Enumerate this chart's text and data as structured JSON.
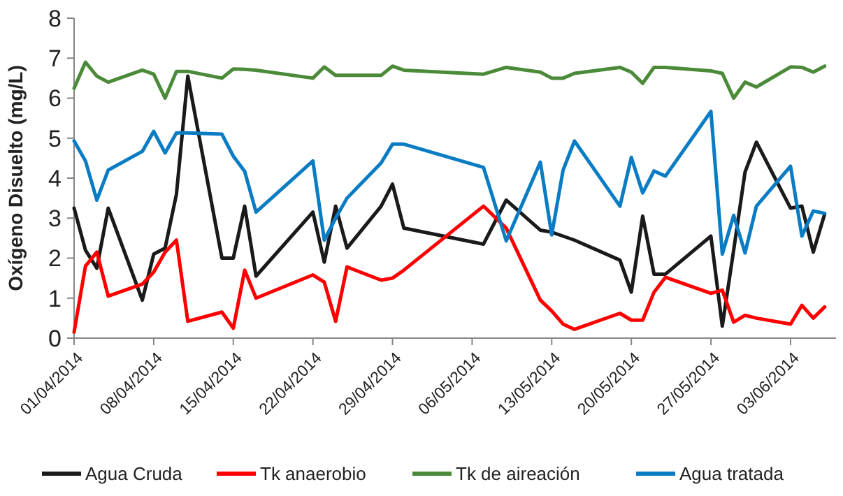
{
  "chart_data": {
    "type": "line",
    "ylabel": "Oxígeno Disuelto (mg/L)",
    "x": [
      "2014-04-01",
      "2014-04-02",
      "2014-04-03",
      "2014-04-04",
      "2014-04-07",
      "2014-04-08",
      "2014-04-09",
      "2014-04-10",
      "2014-04-11",
      "2014-04-14",
      "2014-04-15",
      "2014-04-16",
      "2014-04-17",
      "2014-04-22",
      "2014-04-23",
      "2014-04-24",
      "2014-04-25",
      "2014-04-28",
      "2014-04-29",
      "2014-04-30",
      "2014-05-07",
      "2014-05-09",
      "2014-05-12",
      "2014-05-13",
      "2014-05-14",
      "2014-05-15",
      "2014-05-19",
      "2014-05-20",
      "2014-05-21",
      "2014-05-22",
      "2014-05-23",
      "2014-05-27",
      "2014-05-28",
      "2014-05-29",
      "2014-05-30",
      "2014-05-31",
      "2014-06-03",
      "2014-06-04",
      "2014-06-05",
      "2014-06-06"
    ],
    "series": [
      {
        "name": "Agua Cruda",
        "color": "#1a1a1a",
        "values": [
          3.25,
          2.2,
          1.75,
          3.25,
          0.95,
          2.1,
          2.25,
          3.6,
          6.55,
          2.0,
          2.0,
          3.3,
          1.55,
          3.15,
          1.9,
          3.3,
          2.25,
          3.3,
          3.85,
          2.75,
          2.35,
          3.45,
          2.7,
          2.65,
          2.55,
          2.45,
          1.95,
          1.15,
          3.05,
          1.6,
          1.6,
          2.55,
          0.3,
          2.2,
          4.15,
          4.9,
          3.25,
          3.3,
          2.15,
          3.1
        ]
      },
      {
        "name": "Tk anaerobio",
        "color": "#ff0000",
        "values": [
          0.15,
          1.8,
          2.15,
          1.05,
          1.35,
          1.65,
          2.15,
          2.45,
          0.42,
          0.65,
          0.25,
          1.7,
          1.0,
          1.58,
          1.4,
          0.42,
          1.78,
          1.45,
          1.5,
          1.7,
          3.3,
          2.75,
          0.95,
          0.68,
          0.35,
          0.22,
          0.62,
          0.45,
          0.45,
          1.15,
          1.52,
          1.12,
          1.2,
          0.4,
          0.57,
          0.5,
          0.35,
          0.82,
          0.5,
          0.78
        ]
      },
      {
        "name": "Tk de aireación",
        "color": "#4a8a38",
        "values": [
          6.25,
          6.9,
          6.55,
          6.4,
          6.7,
          6.6,
          6.0,
          6.67,
          6.67,
          6.5,
          6.73,
          6.72,
          6.7,
          6.5,
          6.78,
          6.57,
          6.57,
          6.57,
          6.8,
          6.7,
          6.6,
          6.77,
          6.65,
          6.5,
          6.5,
          6.62,
          6.77,
          6.65,
          6.37,
          6.77,
          6.77,
          6.68,
          6.62,
          6.0,
          6.4,
          6.28,
          6.78,
          6.77,
          6.65,
          6.8
        ]
      },
      {
        "name": "Agua tratada",
        "color": "#0a7cc4",
        "values": [
          4.93,
          4.43,
          3.45,
          4.2,
          4.67,
          5.17,
          4.63,
          5.13,
          5.13,
          5.1,
          4.55,
          4.17,
          3.15,
          4.43,
          2.45,
          3.0,
          3.5,
          4.38,
          4.85,
          4.85,
          4.27,
          2.43,
          4.4,
          2.58,
          4.2,
          4.93,
          3.3,
          4.52,
          3.63,
          4.18,
          4.05,
          5.67,
          2.1,
          3.07,
          2.13,
          3.3,
          4.3,
          2.55,
          3.18,
          3.12
        ]
      }
    ],
    "xlim": [
      "2014-04-01",
      "2014-06-07"
    ],
    "xticks": [
      {
        "value": "2014-04-01",
        "label": "01/04/2014"
      },
      {
        "value": "2014-04-08",
        "label": "08/04/2014"
      },
      {
        "value": "2014-04-15",
        "label": "15/04/2014"
      },
      {
        "value": "2014-04-22",
        "label": "22/04/2014"
      },
      {
        "value": "2014-04-29",
        "label": "29/04/2014"
      },
      {
        "value": "2014-05-06",
        "label": "06/05/2014"
      },
      {
        "value": "2014-05-13",
        "label": "13/05/2014"
      },
      {
        "value": "2014-05-20",
        "label": "20/05/2014"
      },
      {
        "value": "2014-05-27",
        "label": "27/05/2014"
      },
      {
        "value": "2014-06-03",
        "label": "03/06/2014"
      }
    ],
    "ylim": [
      0,
      8
    ],
    "yticks": [
      0,
      1,
      2,
      3,
      4,
      5,
      6,
      7,
      8
    ],
    "grid": false,
    "legend": "bottom",
    "marker": "none",
    "line_style": "solid"
  }
}
